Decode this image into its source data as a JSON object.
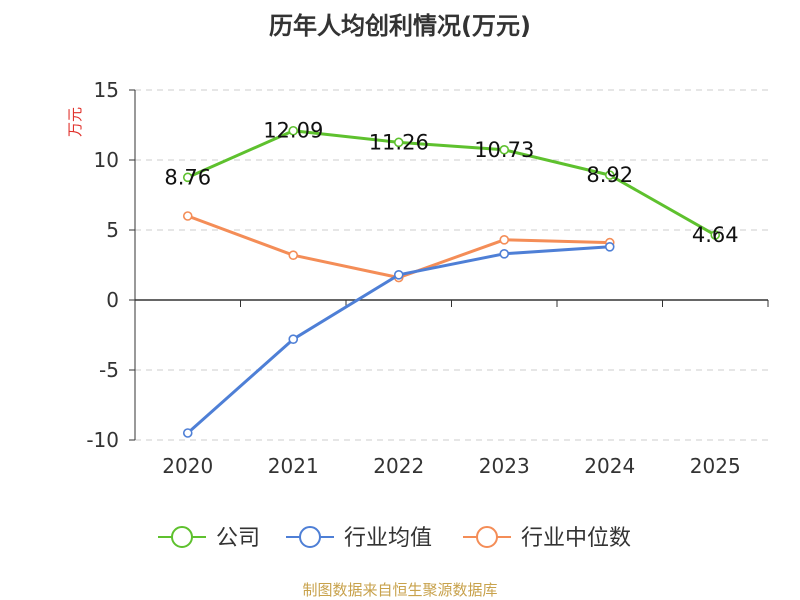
{
  "chart_data": {
    "type": "line",
    "title": "历年人均创利情况(万元)",
    "ylabel": "万元",
    "xlabel": "",
    "ylim": [
      -10,
      15
    ],
    "yticks": [
      15,
      10,
      5,
      0,
      -5,
      -10
    ],
    "categories": [
      "2020",
      "2021",
      "2022",
      "2023",
      "2024",
      "2025"
    ],
    "grid": true,
    "legend_position": "bottom",
    "series": [
      {
        "name": "公司",
        "color": "#5ec12e",
        "values": [
          8.76,
          12.09,
          11.26,
          10.73,
          8.92,
          4.64
        ],
        "labels": [
          "8.76",
          "12.09",
          "11.26",
          "10.73",
          "8.92",
          "4.64"
        ]
      },
      {
        "name": "行业均值",
        "color": "#4e7fd6",
        "values": [
          -9.5,
          -2.8,
          1.8,
          3.3,
          3.8,
          null
        ]
      },
      {
        "name": "行业中位数",
        "color": "#f48d57",
        "values": [
          6.0,
          3.2,
          1.6,
          4.3,
          4.1,
          null
        ]
      }
    ]
  },
  "footer": {
    "source": "制图数据来自恒生聚源数据库"
  }
}
